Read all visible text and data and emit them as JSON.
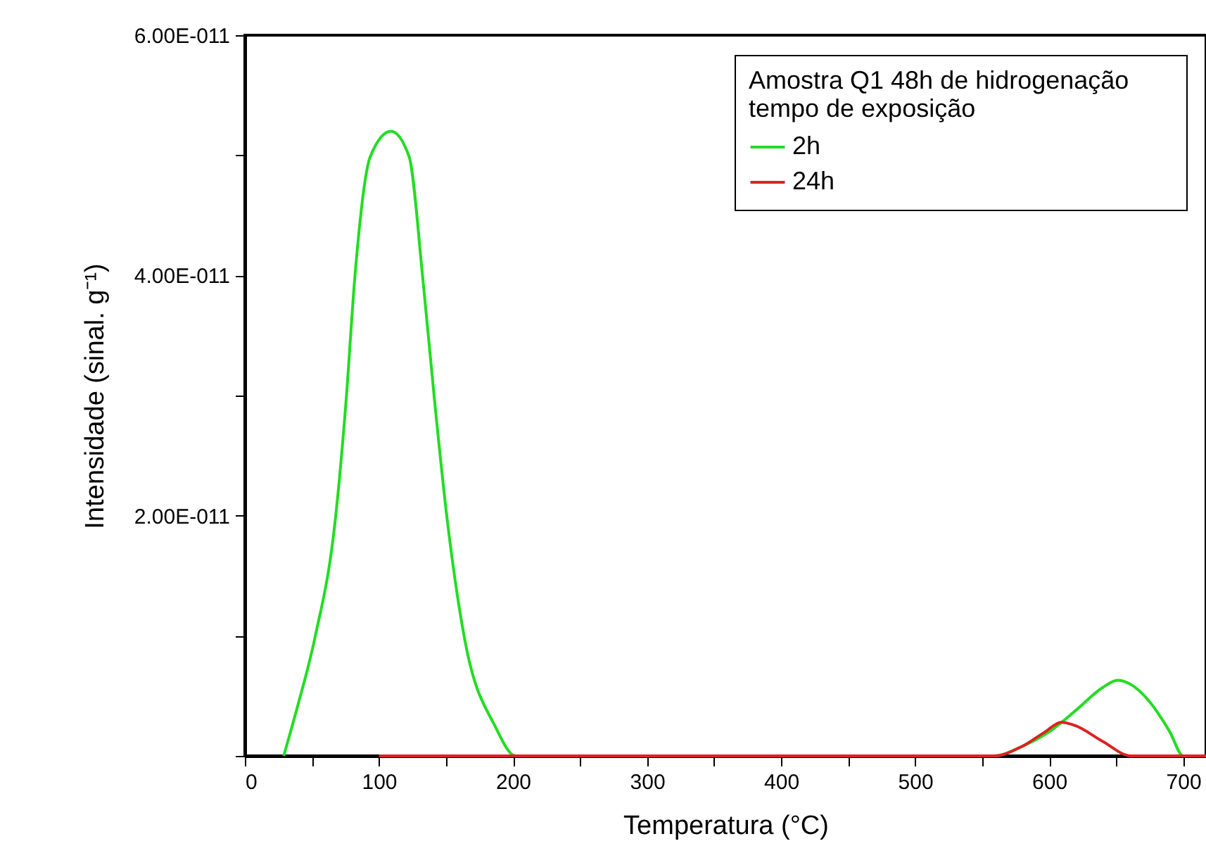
{
  "chart_data": {
    "type": "line",
    "xlabel": "Temperatura (°C)",
    "ylabel": "Intensidade (sinal. g⁻¹)",
    "legend_title": "Amostra    Q1    48h de hidrogenação\ntempo de exposição",
    "legend": "top right",
    "grid": false,
    "xlim": [
      0,
      717
    ],
    "ylim": [
      0,
      6e-11
    ],
    "xticks": [
      0,
      {
        "value": 50,
        "label": null
      },
      100,
      {
        "value": 150,
        "label": null
      },
      200,
      {
        "value": 250,
        "label": null
      },
      300,
      {
        "value": 350,
        "label": null
      },
      400,
      {
        "value": 450,
        "label": null
      },
      500,
      {
        "value": 550,
        "label": null
      },
      600,
      {
        "value": 650,
        "label": null
      },
      700
    ],
    "yticks": [
      {
        "value": 0,
        "label": null
      },
      {
        "value": 1e-11,
        "label": null
      },
      {
        "value": 2e-11,
        "label": "2.00E-011"
      },
      {
        "value": 3e-11,
        "label": null
      },
      {
        "value": 4e-11,
        "label": "4.00E-011"
      },
      {
        "value": 5e-11,
        "label": null
      },
      {
        "value": 6e-11,
        "label": "6.00E-011"
      }
    ],
    "series": [
      {
        "name": "2h",
        "color": "#22dd22",
        "x": [
          29,
          39,
          52,
          67.6,
          75.6,
          82,
          93.6,
          109,
          122.5,
          132.7,
          141.4,
          150.8,
          164,
          187,
          202,
          300,
          400,
          559,
          580,
          600,
          620,
          640,
          651,
          660,
          675,
          690,
          700,
          717
        ],
        "values": [
          0,
          4e-12,
          9.7e-12,
          1.98e-11,
          2.97e-11,
          3.98e-11,
          4.99e-11,
          5.2e-11,
          4.99e-11,
          3.98e-11,
          2.97e-11,
          1.98e-11,
          9.7e-12,
          2.4e-12,
          0,
          0,
          0,
          0,
          8e-13,
          2e-12,
          3.8e-12,
          5.7e-12,
          6.3e-12,
          6e-12,
          4.5e-12,
          2e-12,
          0,
          0
        ]
      },
      {
        "name": "24h",
        "color": "#dd2222",
        "x": [
          100,
          300,
          559,
          580,
          597,
          609,
          620,
          640,
          661,
          717
        ],
        "values": [
          0,
          0,
          0,
          8e-13,
          2e-12,
          2.8e-12,
          2.5e-12,
          1.2e-12,
          0,
          0
        ]
      }
    ]
  }
}
